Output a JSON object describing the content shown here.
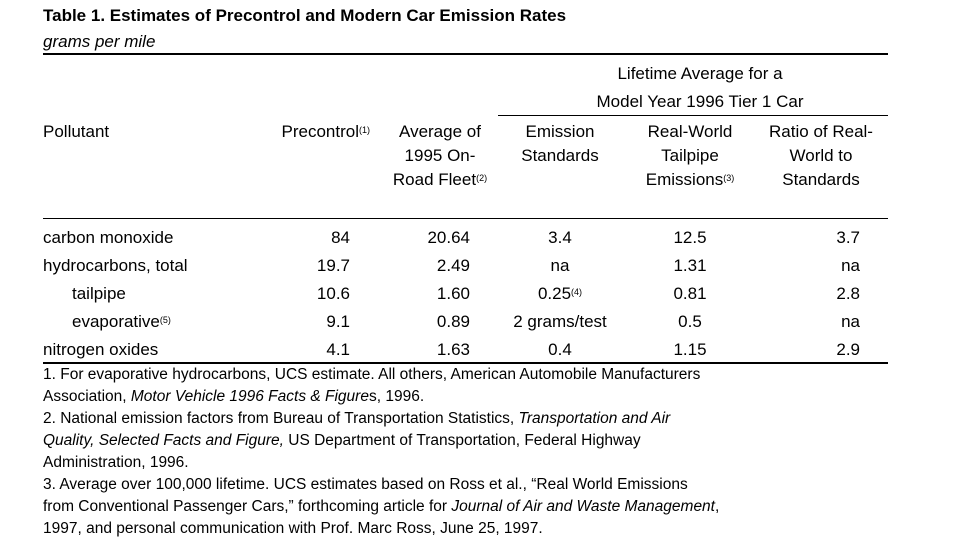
{
  "title": "Table 1. Estimates of Precontrol and Modern Car Emission Rates",
  "subtitle": "grams per mile",
  "group_header": {
    "line1": "Lifetime Average for a",
    "line2": "Model Year 1996 Tier 1 Car"
  },
  "columns": {
    "pollutant": "Pollutant",
    "precontrol": "Precontrol",
    "precontrol_note": "(1)",
    "fleet_l1": "Average of",
    "fleet_l2": "1995 On-",
    "fleet_l3": "Road Fleet",
    "fleet_note": "(2)",
    "std_l1": "Emission",
    "std_l2": "Standards",
    "rw_l1": "Real-World",
    "rw_l2": "Tailpipe",
    "rw_l3": "Emissions",
    "rw_note": "(3)",
    "ratio_l1": "Ratio of Real-",
    "ratio_l2": "World to",
    "ratio_l3": "Standards"
  },
  "rows": [
    {
      "pollutant": "carbon monoxide",
      "note": "",
      "precontrol": "84",
      "fleet": "20.64",
      "standard": "3.4",
      "standard_note": "",
      "real_world": "12.5",
      "ratio": "3.7"
    },
    {
      "pollutant": "hydrocarbons, total",
      "note": "",
      "precontrol": "19.7",
      "fleet": "2.49",
      "standard": "na",
      "standard_note": "",
      "real_world": "1.31",
      "ratio": "na"
    },
    {
      "pollutant": "tailpipe",
      "note": "",
      "precontrol": "10.6",
      "fleet": "1.60",
      "standard": "0.25",
      "standard_note": "(4)",
      "real_world": "0.81",
      "ratio": "2.8"
    },
    {
      "pollutant": "evaporative",
      "note": "(5)",
      "precontrol": "9.1",
      "fleet": "0.89",
      "standard": "2 grams/test",
      "standard_note": "",
      "real_world": "0.5",
      "ratio": "na"
    },
    {
      "pollutant": "nitrogen oxides",
      "note": "",
      "precontrol": "4.1",
      "fleet": "1.63",
      "standard": "0.4",
      "standard_note": "",
      "real_world": "1.15",
      "ratio": "2.9"
    }
  ],
  "footnotes": {
    "f1_a": "1. For evaporative hydrocarbons, UCS estimate.  All others, American Automobile Manufacturers",
    "f1_b_pre": "Association, ",
    "f1_b_ital": "Motor Vehicle 1996 Facts & Figure",
    "f1_b_post": "s, 1996.",
    "f2_a_pre": "2. National emission factors from Bureau of Transportation Statistics, ",
    "f2_a_ital": "Transportation and Air",
    "f2_b_ital": "Quality, Selected Facts and Figure,",
    "f2_b_post": " US Department of Transportation, Federal Highway",
    "f2_c": "Administration, 1996.",
    "f3_a": "3. Average over 100,000 lifetime.  UCS estimates based on Ross et al., “Real World Emissions",
    "f3_b_pre": "from Conventional Passenger Cars,” forthcoming article for ",
    "f3_b_ital": "Journal of Air and Waste Management",
    "f3_b_post": ",",
    "f3_c": "1997, and personal communication with Prof. Marc Ross, June 25, 1997."
  }
}
